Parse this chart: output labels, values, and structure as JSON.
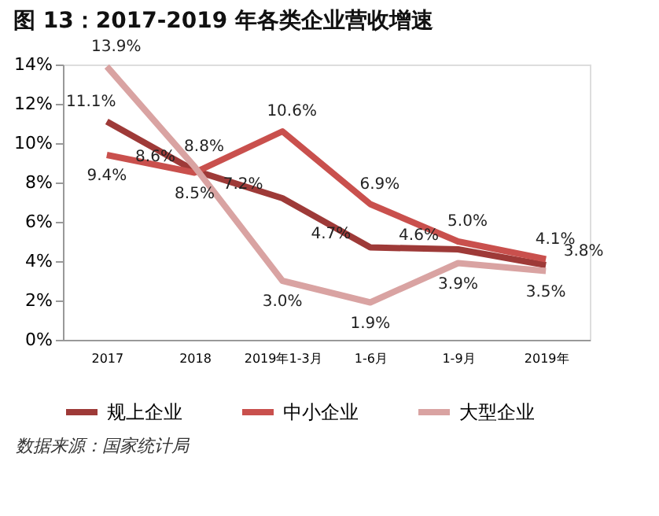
{
  "chart_data": {
    "type": "line",
    "title": "图 13：2017-2019 年各类企业营收增速",
    "categories": [
      "2017",
      "2018",
      "2019年1-3月",
      "1-6月",
      "1-9月",
      "2019年"
    ],
    "series": [
      {
        "name": "规上企业",
        "color": "#9e3a38",
        "values": [
          11.1,
          8.6,
          7.2,
          4.7,
          4.6,
          3.8
        ],
        "value_labels": [
          "11.1%",
          "8.6%",
          "7.2%",
          "4.7%",
          "4.6%",
          "3.8%"
        ]
      },
      {
        "name": "中小企业",
        "color": "#c9504d",
        "values": [
          9.4,
          8.5,
          10.6,
          6.9,
          5.0,
          4.1
        ],
        "value_labels": [
          "9.4%",
          "8.5%",
          "10.6%",
          "6.9%",
          "5.0%",
          "4.1%"
        ]
      },
      {
        "name": "大型企业",
        "color": "#d9a3a2",
        "values": [
          13.9,
          8.8,
          3.0,
          1.9,
          3.9,
          3.5
        ],
        "value_labels": [
          "13.9%",
          "8.8%",
          "3.0%",
          "1.9%",
          "3.9%",
          "3.5%"
        ]
      }
    ],
    "ylim": [
      0,
      14
    ],
    "yticks": [
      {
        "value": 0,
        "label": "0%"
      },
      {
        "value": 2,
        "label": "2%"
      },
      {
        "value": 4,
        "label": "4%"
      },
      {
        "value": 6,
        "label": "6%"
      },
      {
        "value": 8,
        "label": "8%"
      },
      {
        "value": 10,
        "label": "10%"
      },
      {
        "value": 12,
        "label": "12%"
      },
      {
        "value": 14,
        "label": "14%"
      }
    ],
    "grid": false,
    "legend": "bottom",
    "marker": "none",
    "line_style": "solid",
    "annotations": [
      "数据来源：国家统计局"
    ]
  }
}
